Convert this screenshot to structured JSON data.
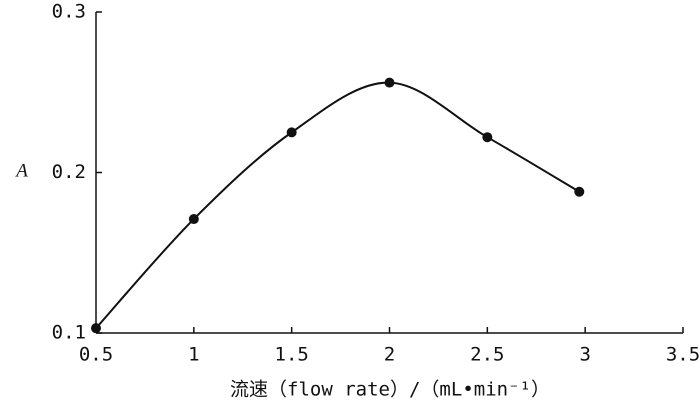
{
  "chart_data": {
    "type": "line",
    "x_label": "流速（flow rate）/（mL•min⁻¹）",
    "y_label": "A",
    "x": [
      0.5,
      1,
      1.5,
      2,
      2.5,
      2.97
    ],
    "series": [
      {
        "color": "#111111",
        "values": [
          0.103,
          0.171,
          0.225,
          0.256,
          0.222,
          0.188
        ]
      }
    ],
    "xlim": [
      0.5,
      3.5
    ],
    "xticks": [
      0.5,
      1,
      1.5,
      2,
      2.5,
      3,
      3.5
    ],
    "ylim": [
      0.1,
      0.3
    ],
    "yticks": [
      0.1,
      0.2,
      0.3
    ],
    "smooth": true,
    "markers": true
  }
}
